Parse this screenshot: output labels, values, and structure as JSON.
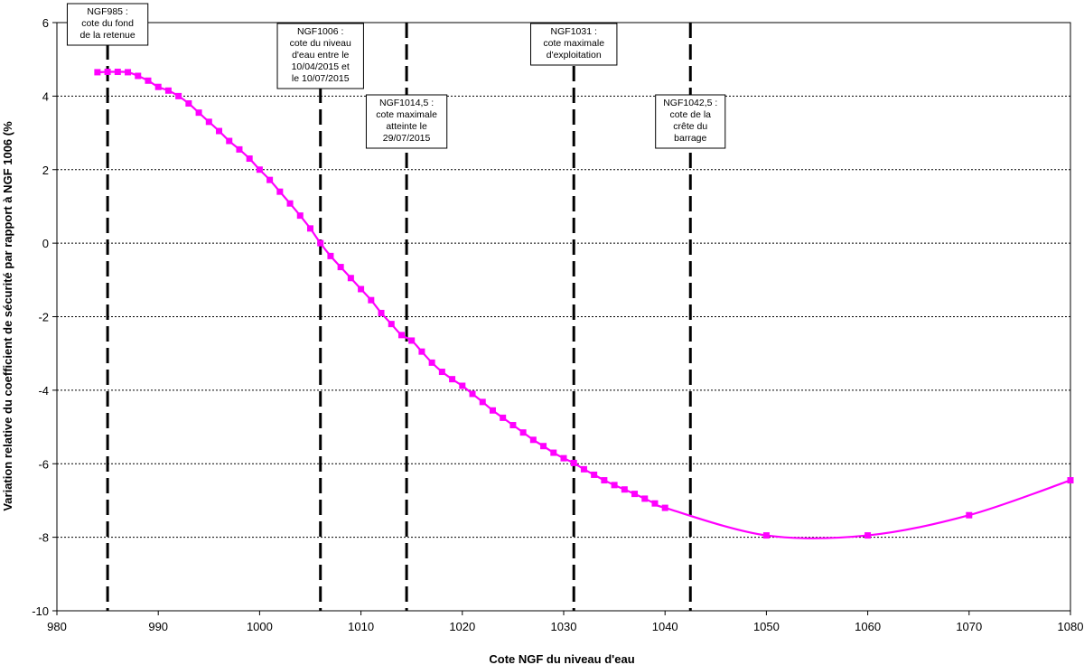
{
  "chart_data": {
    "type": "line",
    "title": "",
    "xlabel": "Cote NGF du niveau d'eau",
    "ylabel": "Variation relative du coefficient de sécurité par rapport à NGF 1006 (%",
    "xlim": [
      980,
      1080
    ],
    "ylim": [
      -10,
      6
    ],
    "x_ticks": [
      980,
      990,
      1000,
      1010,
      1020,
      1030,
      1040,
      1050,
      1060,
      1070,
      1080
    ],
    "y_ticks": [
      -10,
      -8,
      -6,
      -4,
      -2,
      0,
      2,
      4,
      6
    ],
    "grid": {
      "horizontal_dotted": true,
      "vertical": false
    },
    "legend": "none",
    "series": [
      {
        "color": "#ff00ff",
        "marker": "square",
        "x": [
          984,
          985,
          986,
          987,
          988,
          989,
          990,
          991,
          992,
          993,
          994,
          995,
          996,
          997,
          998,
          999,
          1000,
          1001,
          1002,
          1003,
          1004,
          1005,
          1006,
          1007,
          1008,
          1009,
          1010,
          1011,
          1012,
          1013,
          1014,
          1015,
          1016,
          1017,
          1018,
          1019,
          1020,
          1021,
          1022,
          1023,
          1024,
          1025,
          1026,
          1027,
          1028,
          1029,
          1030,
          1031,
          1032,
          1033,
          1034,
          1035,
          1036,
          1037,
          1038,
          1039,
          1040,
          1050,
          1060,
          1070,
          1080
        ],
        "y": [
          4.65,
          4.66,
          4.66,
          4.65,
          4.55,
          4.42,
          4.25,
          4.15,
          4.0,
          3.8,
          3.55,
          3.3,
          3.05,
          2.78,
          2.55,
          2.3,
          2.0,
          1.72,
          1.4,
          1.08,
          0.75,
          0.4,
          0.0,
          -0.35,
          -0.65,
          -0.95,
          -1.25,
          -1.55,
          -1.9,
          -2.2,
          -2.5,
          -2.65,
          -2.95,
          -3.25,
          -3.5,
          -3.7,
          -3.88,
          -4.1,
          -4.32,
          -4.55,
          -4.75,
          -4.95,
          -5.15,
          -5.35,
          -5.52,
          -5.7,
          -5.85,
          -5.98,
          -6.15,
          -6.3,
          -6.45,
          -6.58,
          -6.7,
          -6.82,
          -6.95,
          -7.08,
          -7.2,
          -7.95,
          -7.95,
          -7.4,
          -6.45
        ]
      }
    ],
    "reference_lines": [
      {
        "x": 985,
        "label_lines": [
          "NGF985 :",
          "cote du fond",
          "de la retenue"
        ]
      },
      {
        "x": 1006,
        "label_lines": [
          "NGF1006 :",
          "cote du niveau",
          "d'eau entre le",
          "10/04/2015 et",
          "le 10/07/2015"
        ]
      },
      {
        "x": 1014.5,
        "label_lines": [
          "NGF1014,5 :",
          "cote maximale",
          "atteinte le",
          "29/07/2015"
        ]
      },
      {
        "x": 1031,
        "label_lines": [
          "NGF1031 :",
          "cote maximale",
          "d'exploitation"
        ]
      },
      {
        "x": 1042.5,
        "label_lines": [
          "NGF1042,5 :",
          "cote de la",
          "crête du",
          "barrage"
        ]
      }
    ]
  }
}
